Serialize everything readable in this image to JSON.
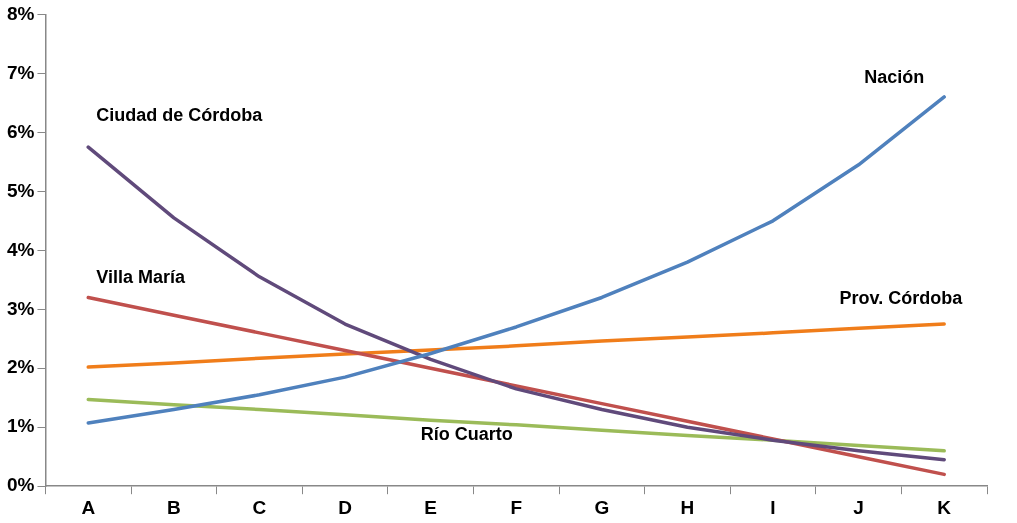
{
  "chart_data": {
    "type": "line",
    "categories": [
      "A",
      "B",
      "C",
      "D",
      "E",
      "F",
      "G",
      "H",
      "I",
      "J",
      "K"
    ],
    "series": [
      {
        "name": "Nación",
        "color": "#4f81bd",
        "values": [
          1.07,
          1.3,
          1.55,
          1.85,
          2.25,
          2.7,
          3.2,
          3.8,
          4.5,
          5.45,
          6.6
        ]
      },
      {
        "name": "Ciudad de Córdoba",
        "color": "#604a7b",
        "values": [
          5.75,
          4.55,
          3.55,
          2.75,
          2.15,
          1.65,
          1.3,
          1.0,
          0.78,
          0.6,
          0.45
        ]
      },
      {
        "name": "Villa María",
        "color": "#c0504d",
        "values": [
          3.2,
          2.9,
          2.6,
          2.3,
          2.0,
          1.7,
          1.4,
          1.1,
          0.8,
          0.5,
          0.2
        ]
      },
      {
        "name": "Prov. Córdoba",
        "color": "#f07d1a",
        "values": [
          2.02,
          2.09,
          2.17,
          2.24,
          2.31,
          2.38,
          2.46,
          2.53,
          2.6,
          2.68,
          2.75
        ]
      },
      {
        "name": "Río Cuarto",
        "color": "#9bbb59",
        "values": [
          1.47,
          1.38,
          1.3,
          1.21,
          1.12,
          1.04,
          0.95,
          0.86,
          0.78,
          0.69,
          0.6
        ]
      }
    ],
    "ylim": [
      0,
      8
    ],
    "yticks": [
      {
        "value": 0,
        "label": "0%"
      },
      {
        "value": 1,
        "label": "1%"
      },
      {
        "value": 2,
        "label": "2%"
      },
      {
        "value": 3,
        "label": "3%"
      },
      {
        "value": 4,
        "label": "4%"
      },
      {
        "value": 5,
        "label": "5%"
      },
      {
        "value": 6,
        "label": "6%"
      },
      {
        "value": 7,
        "label": "7%"
      },
      {
        "value": 8,
        "label": "8%"
      }
    ],
    "grid": false,
    "legend": false,
    "marker": "none",
    "line_style": "solid"
  }
}
